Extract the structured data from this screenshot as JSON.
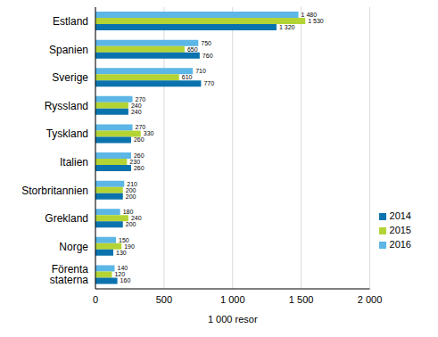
{
  "chart_data": {
    "type": "bar",
    "orientation": "horizontal",
    "x_label": "1 000 resor",
    "categories": [
      "Estland",
      "Spanien",
      "Sverige",
      "Ryssland",
      "Tyskland",
      "Italien",
      "Storbritannien",
      "Grekland",
      "Norge",
      "Förenta staterna"
    ],
    "series": [
      {
        "name": "2016",
        "color": "#5cb6e6",
        "values": [
          1480,
          750,
          710,
          270,
          270,
          260,
          210,
          180,
          150,
          140
        ],
        "value_labels": [
          "1 480",
          "750",
          "710",
          "270",
          "270",
          "260",
          "210",
          "180",
          "150",
          "140"
        ]
      },
      {
        "name": "2015",
        "color": "#b4d435",
        "values": [
          1530,
          650,
          610,
          240,
          330,
          230,
          200,
          240,
          190,
          120
        ],
        "value_labels": [
          "1 530",
          "650",
          "610",
          "240",
          "330",
          "230",
          "200",
          "240",
          "190",
          "120"
        ]
      },
      {
        "name": "2014",
        "color": "#0a73ad",
        "values": [
          1320,
          760,
          770,
          240,
          260,
          260,
          200,
          200,
          130,
          160
        ],
        "value_labels": [
          "1 320",
          "760",
          "770",
          "240",
          "260",
          "260",
          "200",
          "200",
          "130",
          "160"
        ]
      }
    ],
    "xlim": [
      0,
      2000
    ],
    "xticks": [
      0,
      500,
      {
        "value": 1000,
        "label": "1 000"
      },
      {
        "value": 1500,
        "label": "1 500"
      },
      {
        "value": 2000,
        "label": "2 000"
      }
    ],
    "grid": true,
    "legend": "right",
    "data_labels": true
  }
}
